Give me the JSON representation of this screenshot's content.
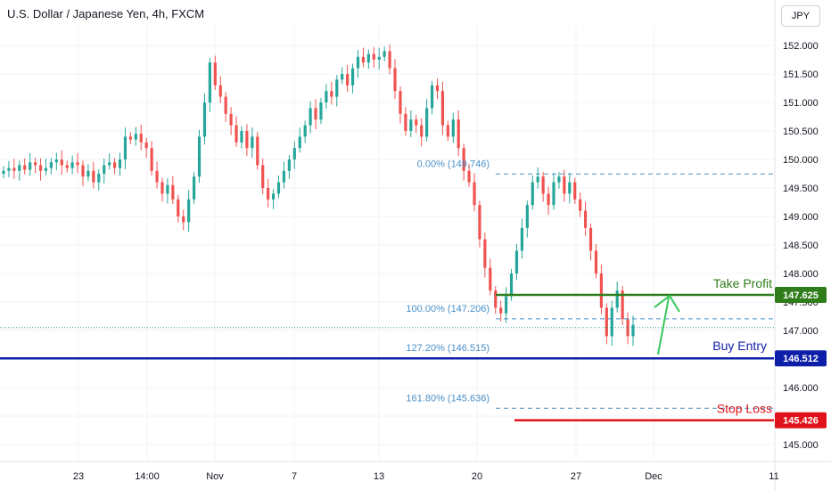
{
  "header": {
    "symbol_title": "U.S. Dollar / Japanese Yen, 4h, FXCM",
    "currency_button": "JPY"
  },
  "colors": {
    "up": "#26a69a",
    "down": "#ef5350",
    "grid": "#f0f3fa",
    "take_profit": "#2e7d1a",
    "buy_entry": "#0d1ea8",
    "stop_loss": "#e0131a",
    "fib": "#4a90c8",
    "arrow": "#34c759",
    "axis_text": "#131722"
  },
  "chart_data": {
    "type": "candlestick",
    "title": "U.S. Dollar / Japanese Yen, 4h, FXCM",
    "ylim": [
      144.7,
      152.35
    ],
    "y_ticks": [
      "152.000",
      "151.500",
      "151.000",
      "150.500",
      "150.000",
      "149.500",
      "149.000",
      "148.500",
      "148.000",
      "147.500",
      "147.000",
      "146.500",
      "146.000",
      "145.500",
      "145.000"
    ],
    "x_ticks": [
      "23",
      "14:00",
      "Nov",
      "7",
      "13",
      "20",
      "27",
      "Dec",
      "11"
    ],
    "last_price": 147.05,
    "grid": "on",
    "series_close": [
      149.8,
      149.85,
      149.8,
      149.9,
      149.82,
      149.95,
      149.9,
      149.8,
      149.85,
      149.95,
      150.0,
      149.9,
      149.85,
      149.95,
      149.9,
      149.7,
      149.8,
      149.6,
      149.75,
      149.9,
      149.95,
      149.85,
      150.0,
      150.4,
      150.35,
      150.45,
      150.3,
      150.2,
      149.8,
      149.6,
      149.4,
      149.55,
      149.3,
      149.0,
      148.9,
      149.3,
      149.7,
      150.4,
      151.0,
      151.7,
      151.3,
      151.1,
      150.8,
      150.6,
      150.3,
      150.5,
      150.2,
      150.4,
      149.9,
      149.5,
      149.3,
      149.4,
      149.6,
      149.8,
      150.0,
      150.2,
      150.4,
      150.6,
      150.9,
      150.7,
      151.0,
      151.2,
      151.1,
      151.4,
      151.5,
      151.3,
      151.6,
      151.8,
      151.7,
      151.85,
      151.75,
      151.8,
      151.9,
      151.6,
      151.2,
      150.8,
      150.5,
      150.7,
      150.6,
      150.4,
      150.9,
      151.3,
      151.2,
      150.6,
      150.4,
      150.7,
      150.2,
      149.8,
      149.6,
      149.2,
      148.6,
      148.1,
      147.7,
      147.4,
      147.3,
      147.6,
      148.0,
      148.4,
      148.8,
      149.2,
      149.6,
      149.7,
      149.4,
      149.2,
      149.6,
      149.7,
      149.4,
      149.6,
      149.3,
      149.1,
      148.8,
      148.4,
      148.0,
      147.4,
      146.9,
      147.4,
      147.7,
      147.2,
      146.9,
      147.1
    ]
  },
  "annotations": {
    "fib_0": "0.00% (149.746)",
    "fib_100": "100.00% (147.206)",
    "fib_127": "127.20% (146.515)",
    "fib_161": "161.80% (145.636)",
    "take_profit_label": "Take Profit",
    "take_profit_price": "147.625",
    "buy_entry_label": "Buy Entry",
    "buy_entry_price": "146.512",
    "stop_loss_label": "Stop Loss",
    "stop_loss_price": "145.426"
  },
  "levels": {
    "fib_0": 149.746,
    "fib_100": 147.206,
    "fib_127": 146.515,
    "fib_161": 145.636,
    "take_profit": 147.625,
    "buy_entry": 146.512,
    "stop_loss": 145.426
  }
}
